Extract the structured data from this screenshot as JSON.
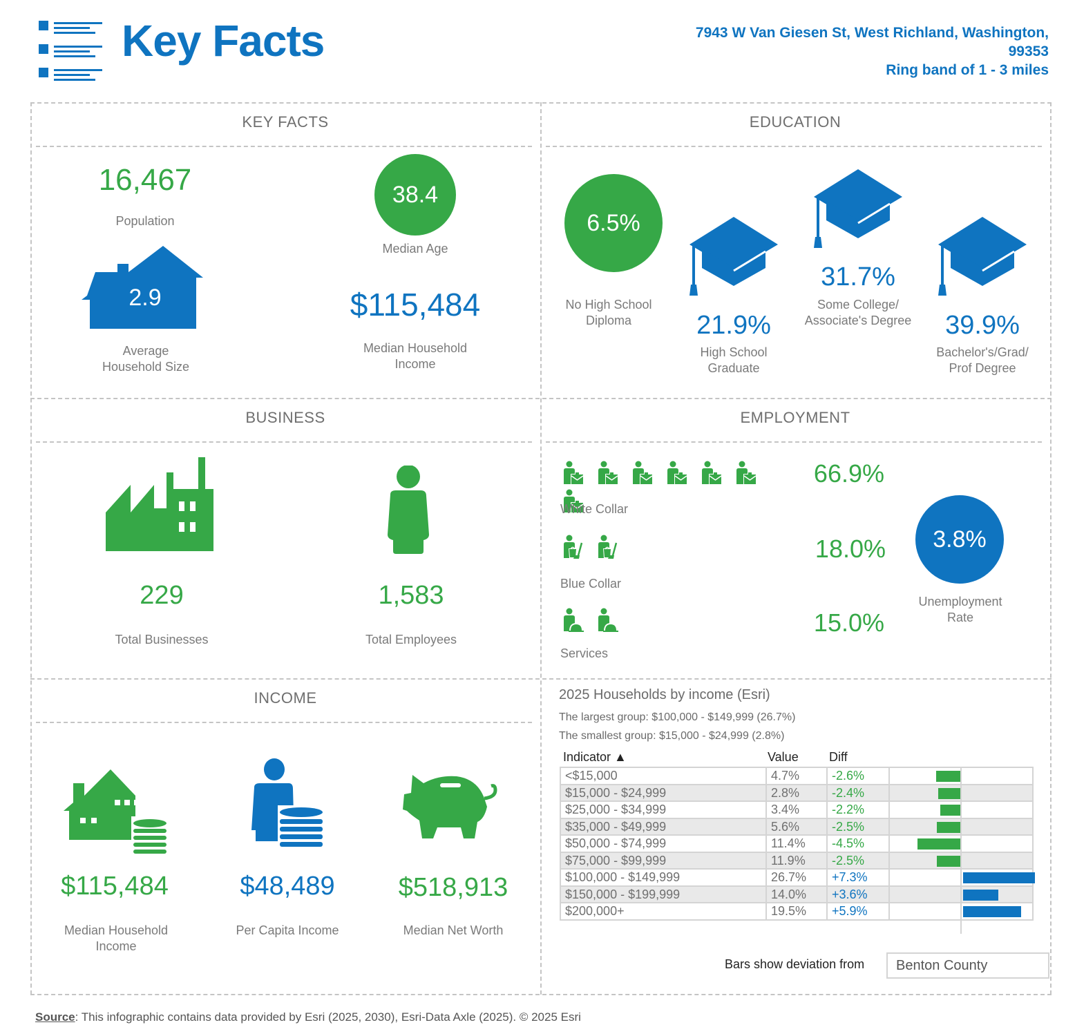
{
  "header": {
    "title": "Key Facts",
    "address_line1": "7943 W Van Giesen St, West Richland, Washington,",
    "address_line2": "99353",
    "ring": "Ring band of 1 - 3 miles",
    "logo_icon": "list-icon"
  },
  "colors": {
    "blue": "#0f74c0",
    "green": "#36a847",
    "gray": "#707070"
  },
  "key_facts": {
    "section_title": "KEY FACTS",
    "population_value": "16,467",
    "population_label": "Population",
    "median_age_value": "38.4",
    "median_age_label": "Median Age",
    "household_size_value": "2.9",
    "household_size_label_1": "Average",
    "household_size_label_2": "Household Size",
    "median_income_value": "$115,484",
    "median_income_label_1": "Median Household",
    "median_income_label_2": "Income"
  },
  "education": {
    "section_title": "EDUCATION",
    "items": [
      {
        "value": "6.5%",
        "label_1": "No High School",
        "label_2": "Diploma",
        "icon": "circle"
      },
      {
        "value": "21.9%",
        "label_1": "High School",
        "label_2": "Graduate",
        "icon": "graduation-cap-icon"
      },
      {
        "value": "31.7%",
        "label_1": "Some College/",
        "label_2": "Associate's Degree",
        "icon": "graduation-cap-icon"
      },
      {
        "value": "39.9%",
        "label_1": "Bachelor's/Grad/",
        "label_2": "Prof Degree",
        "icon": "graduation-cap-icon"
      }
    ]
  },
  "business": {
    "section_title": "BUSINESS",
    "total_businesses_value": "229",
    "total_businesses_label": "Total Businesses",
    "total_employees_value": "1,583",
    "total_employees_label": "Total Employees"
  },
  "employment": {
    "section_title": "EMPLOYMENT",
    "rows": [
      {
        "label": "White Collar",
        "value": "66.9%",
        "icon_count": 7,
        "icon": "white-collar-worker-icon"
      },
      {
        "label": "Blue Collar",
        "value": "18.0%",
        "icon_count": 2,
        "icon": "blue-collar-worker-icon"
      },
      {
        "label": "Services",
        "value": "15.0%",
        "icon_count": 2,
        "icon": "service-worker-icon"
      }
    ],
    "unemployment_value": "3.8%",
    "unemployment_label_1": "Unemployment",
    "unemployment_label_2": "Rate"
  },
  "income": {
    "section_title": "INCOME",
    "items": [
      {
        "value": "$115,484",
        "label_1": "Median Household",
        "label_2": "Income",
        "icon": "house-coins-icon"
      },
      {
        "value": "$48,489",
        "label_1": "Per Capita Income",
        "label_2": "",
        "icon": "person-coins-icon"
      },
      {
        "value": "$518,913",
        "label_1": "Median Net Worth",
        "label_2": "",
        "icon": "piggy-bank-icon"
      }
    ]
  },
  "households_by_income": {
    "title": "2025 Households by income (Esri)",
    "largest": "The largest group: $100,000 - $149,999 (26.7%)",
    "smallest": "The smallest group: $15,000 - $24,999 (2.8%)",
    "columns": {
      "indicator": "Indicator ▲",
      "value": "Value",
      "diff": "Diff"
    },
    "deviation_label": "Bars show deviation from",
    "deviation_from": "Benton County"
  },
  "chart_data": {
    "type": "bar",
    "title": "2025 Households by income (Esri)",
    "orientation": "horizontal-diverging",
    "categories": [
      "<$15,000",
      "$15,000 - $24,999",
      "$25,000 - $34,999",
      "$35,000 - $49,999",
      "$50,000 - $74,999",
      "$75,000 - $99,999",
      "$100,000 - $149,999",
      "$150,000 - $199,999",
      "$200,000+"
    ],
    "values": [
      "4.7%",
      "2.8%",
      "3.4%",
      "5.6%",
      "11.4%",
      "11.9%",
      "26.7%",
      "14.0%",
      "19.5%"
    ],
    "diff_labels": [
      "-2.6%",
      "-2.4%",
      "-2.2%",
      "-2.5%",
      "-4.5%",
      "-2.5%",
      "+7.3%",
      "+3.6%",
      "+5.9%"
    ],
    "diffs": [
      -2.6,
      -2.4,
      -2.2,
      -2.5,
      -4.5,
      -2.5,
      7.3,
      3.6,
      5.9
    ],
    "xlim": [
      -7.3,
      7.3
    ],
    "negative_color": "#36a847",
    "positive_color": "#0f74c0",
    "reference": "Benton County"
  },
  "footer": {
    "source_label": "Source",
    "source_text": ": This infographic contains data provided by Esri (2025, 2030), Esri-Data Axle (2025).  © 2025 Esri"
  }
}
